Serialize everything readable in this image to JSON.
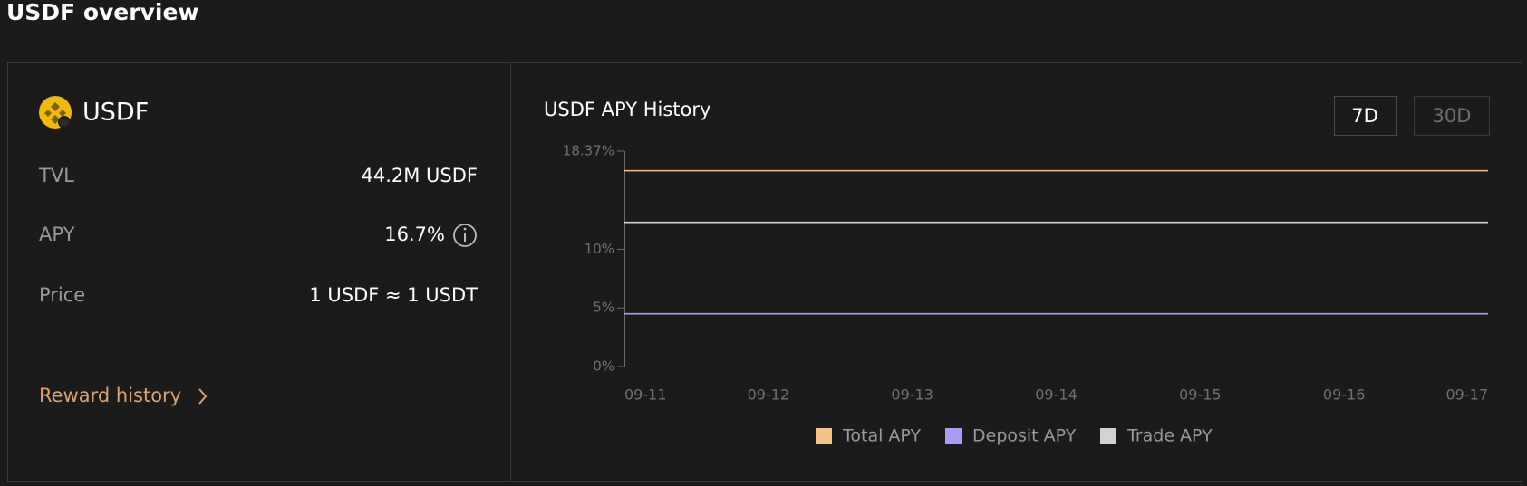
{
  "header": {
    "title": "USDF overview"
  },
  "asset": {
    "name": "USDF"
  },
  "stats": [
    {
      "label": "TVL",
      "value": "44.2M USDF"
    },
    {
      "label": "APY",
      "value": "16.7%"
    },
    {
      "label": "Price",
      "value": "1 USDF ≈ 1 USDT"
    }
  ],
  "link": "Reward history",
  "range_buttons": [
    "7D",
    "30D"
  ],
  "chart_data": {
    "type": "line",
    "title": "USDF APY History",
    "categories": [
      "09-11",
      "09-12",
      "09-13",
      "09-14",
      "09-15",
      "09-16",
      "09-17"
    ],
    "series": [
      {
        "name": "Total APY",
        "color": "#f2c28a",
        "values": [
          16.7,
          16.7,
          16.7,
          16.7,
          16.7,
          16.7,
          16.7
        ]
      },
      {
        "name": "Deposit APY",
        "color": "#a99cf5",
        "values": [
          4.5,
          4.5,
          4.5,
          4.5,
          4.5,
          4.5,
          4.5
        ]
      },
      {
        "name": "Trade APY",
        "color": "#d2d2d2",
        "values": [
          12.3,
          12.3,
          12.3,
          12.3,
          12.3,
          12.3,
          12.3
        ]
      }
    ],
    "ylim": [
      0,
      18.37
    ],
    "yticks": [
      {
        "value": 0,
        "label": "0%"
      },
      {
        "value": 5,
        "label": "5%"
      },
      {
        "value": 10,
        "label": "10%"
      },
      {
        "value": 18.37,
        "label": "18.37%"
      }
    ],
    "grid": false,
    "legend": "bottom"
  }
}
